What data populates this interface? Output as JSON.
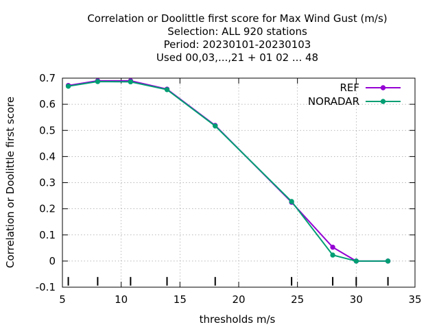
{
  "chart_data": {
    "type": "line",
    "title_lines": [
      "Correlation or Doolittle first score  for Max Wind Gust (m/s)",
      "Selection: ALL    920 stations",
      "Period: 20230101-20230103",
      "Used  00,03,...,21  + 01 02 ... 48"
    ],
    "xlabel": "thresholds m/s",
    "ylabel": "Correlation or Doolittle first score",
    "xlim": [
      5,
      35
    ],
    "ylim": [
      -0.1,
      0.7
    ],
    "xticks": [
      5,
      10,
      15,
      20,
      25,
      30,
      35
    ],
    "yticks": [
      -0.1,
      0,
      0.1,
      0.2,
      0.3,
      0.4,
      0.5,
      0.6,
      0.7
    ],
    "xtick_labels": [
      "5",
      "10",
      "15",
      "20",
      "25",
      "30",
      "35"
    ],
    "ytick_labels": [
      "-0.1",
      "0",
      "0.1",
      "0.2",
      "0.3",
      "0.4",
      "0.5",
      "0.6",
      "0.7"
    ],
    "grid": true,
    "legend_position": "top-right",
    "threshold_marks": [
      5.5,
      8,
      10.8,
      13.9,
      18,
      24.5,
      28,
      30,
      32.7
    ],
    "series": [
      {
        "name": "REF",
        "color": "#9400d3",
        "x": [
          5.5,
          8,
          10.8,
          13.9,
          18,
          24.5,
          28,
          30,
          32.7
        ],
        "y": [
          0.672,
          0.69,
          0.69,
          0.658,
          0.519,
          0.225,
          0.053,
          0.0,
          0.0
        ]
      },
      {
        "name": "NORADAR",
        "color": "#009e73",
        "x": [
          5.5,
          8,
          10.8,
          13.9,
          18,
          24.5,
          28,
          30,
          32.7
        ],
        "y": [
          0.669,
          0.687,
          0.686,
          0.656,
          0.517,
          0.228,
          0.023,
          0.0,
          0.0
        ]
      }
    ]
  }
}
